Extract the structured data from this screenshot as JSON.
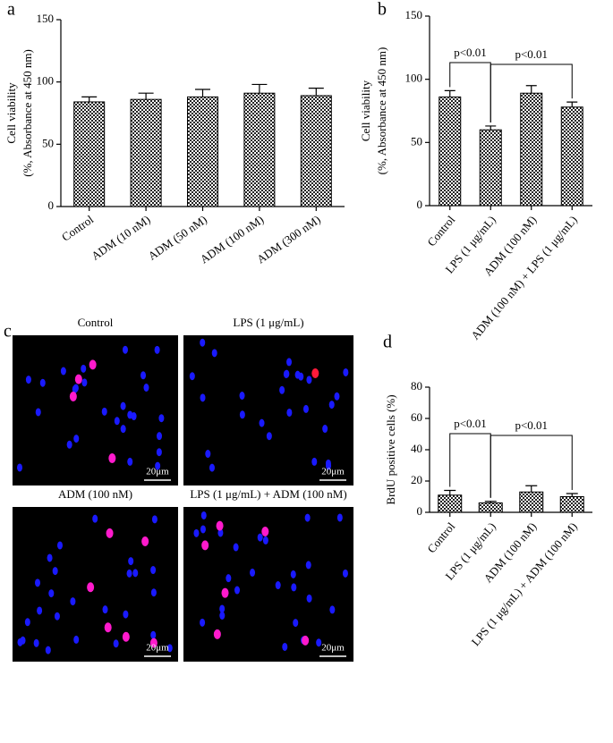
{
  "chart_data": [
    {
      "type": "bar",
      "panel": "a",
      "ylabel": [
        "Cell viability",
        "(%, Absorbance at 450 nm)"
      ],
      "categories": [
        "Control",
        "ADM (10 nM)",
        "ADM (50 nM)",
        "ADM (100 nM)",
        "ADM (300 nM)"
      ],
      "values": [
        84,
        86,
        88,
        91,
        89
      ],
      "errors": [
        4,
        5,
        6,
        7,
        6
      ],
      "color": "#000000",
      "ylim": [
        0,
        150
      ],
      "yticks": [
        0,
        50,
        100,
        150
      ],
      "comparisons": []
    },
    {
      "type": "bar",
      "panel": "b",
      "ylabel": [
        "Cell viability",
        "(%, Absorbance at 450 nm)"
      ],
      "categories": [
        "Control",
        "LPS (1 μg/mL)",
        "ADM (100 nM)",
        "ADM (100 nM) + LPS (1 μg/mL)"
      ],
      "values": [
        86,
        60,
        89,
        78
      ],
      "errors": [
        5,
        3,
        6,
        4
      ],
      "color": "#000000",
      "ylim": [
        0,
        150
      ],
      "yticks": [
        0,
        50,
        100,
        150
      ],
      "comparisons": [
        {
          "label": "p<0.01",
          "between": [
            0,
            1
          ]
        },
        {
          "label": "p<0.01",
          "between": [
            1,
            3
          ]
        }
      ]
    },
    {
      "type": "bar",
      "panel": "d",
      "ylabel": [
        "BrdU positive cells (%)"
      ],
      "categories": [
        "Control",
        "LPS (1 μg/mL)",
        "ADM (100 nM)",
        "LPS (1 μg/mL) + ADM (100 nM)"
      ],
      "values": [
        11,
        6,
        13,
        10
      ],
      "errors": [
        3,
        1,
        4,
        2
      ],
      "color": "#000000",
      "ylim": [
        0,
        80
      ],
      "yticks": [
        0,
        20,
        40,
        60,
        80
      ],
      "comparisons": [
        {
          "label": "p<0.01",
          "between": [
            0,
            1
          ]
        },
        {
          "label": "p<0.01",
          "between": [
            1,
            3
          ]
        }
      ]
    }
  ],
  "images_panel": {
    "panel": "c",
    "images": [
      {
        "title": "Control",
        "scale_bar": "20μm"
      },
      {
        "title": "LPS (1 μg/mL)",
        "scale_bar": "20μm"
      },
      {
        "title": "ADM (100 nM)",
        "scale_bar": "20μm"
      },
      {
        "title": "LPS (1 μg/mL) + ADM (100 nM)",
        "scale_bar": "20μm"
      }
    ]
  }
}
